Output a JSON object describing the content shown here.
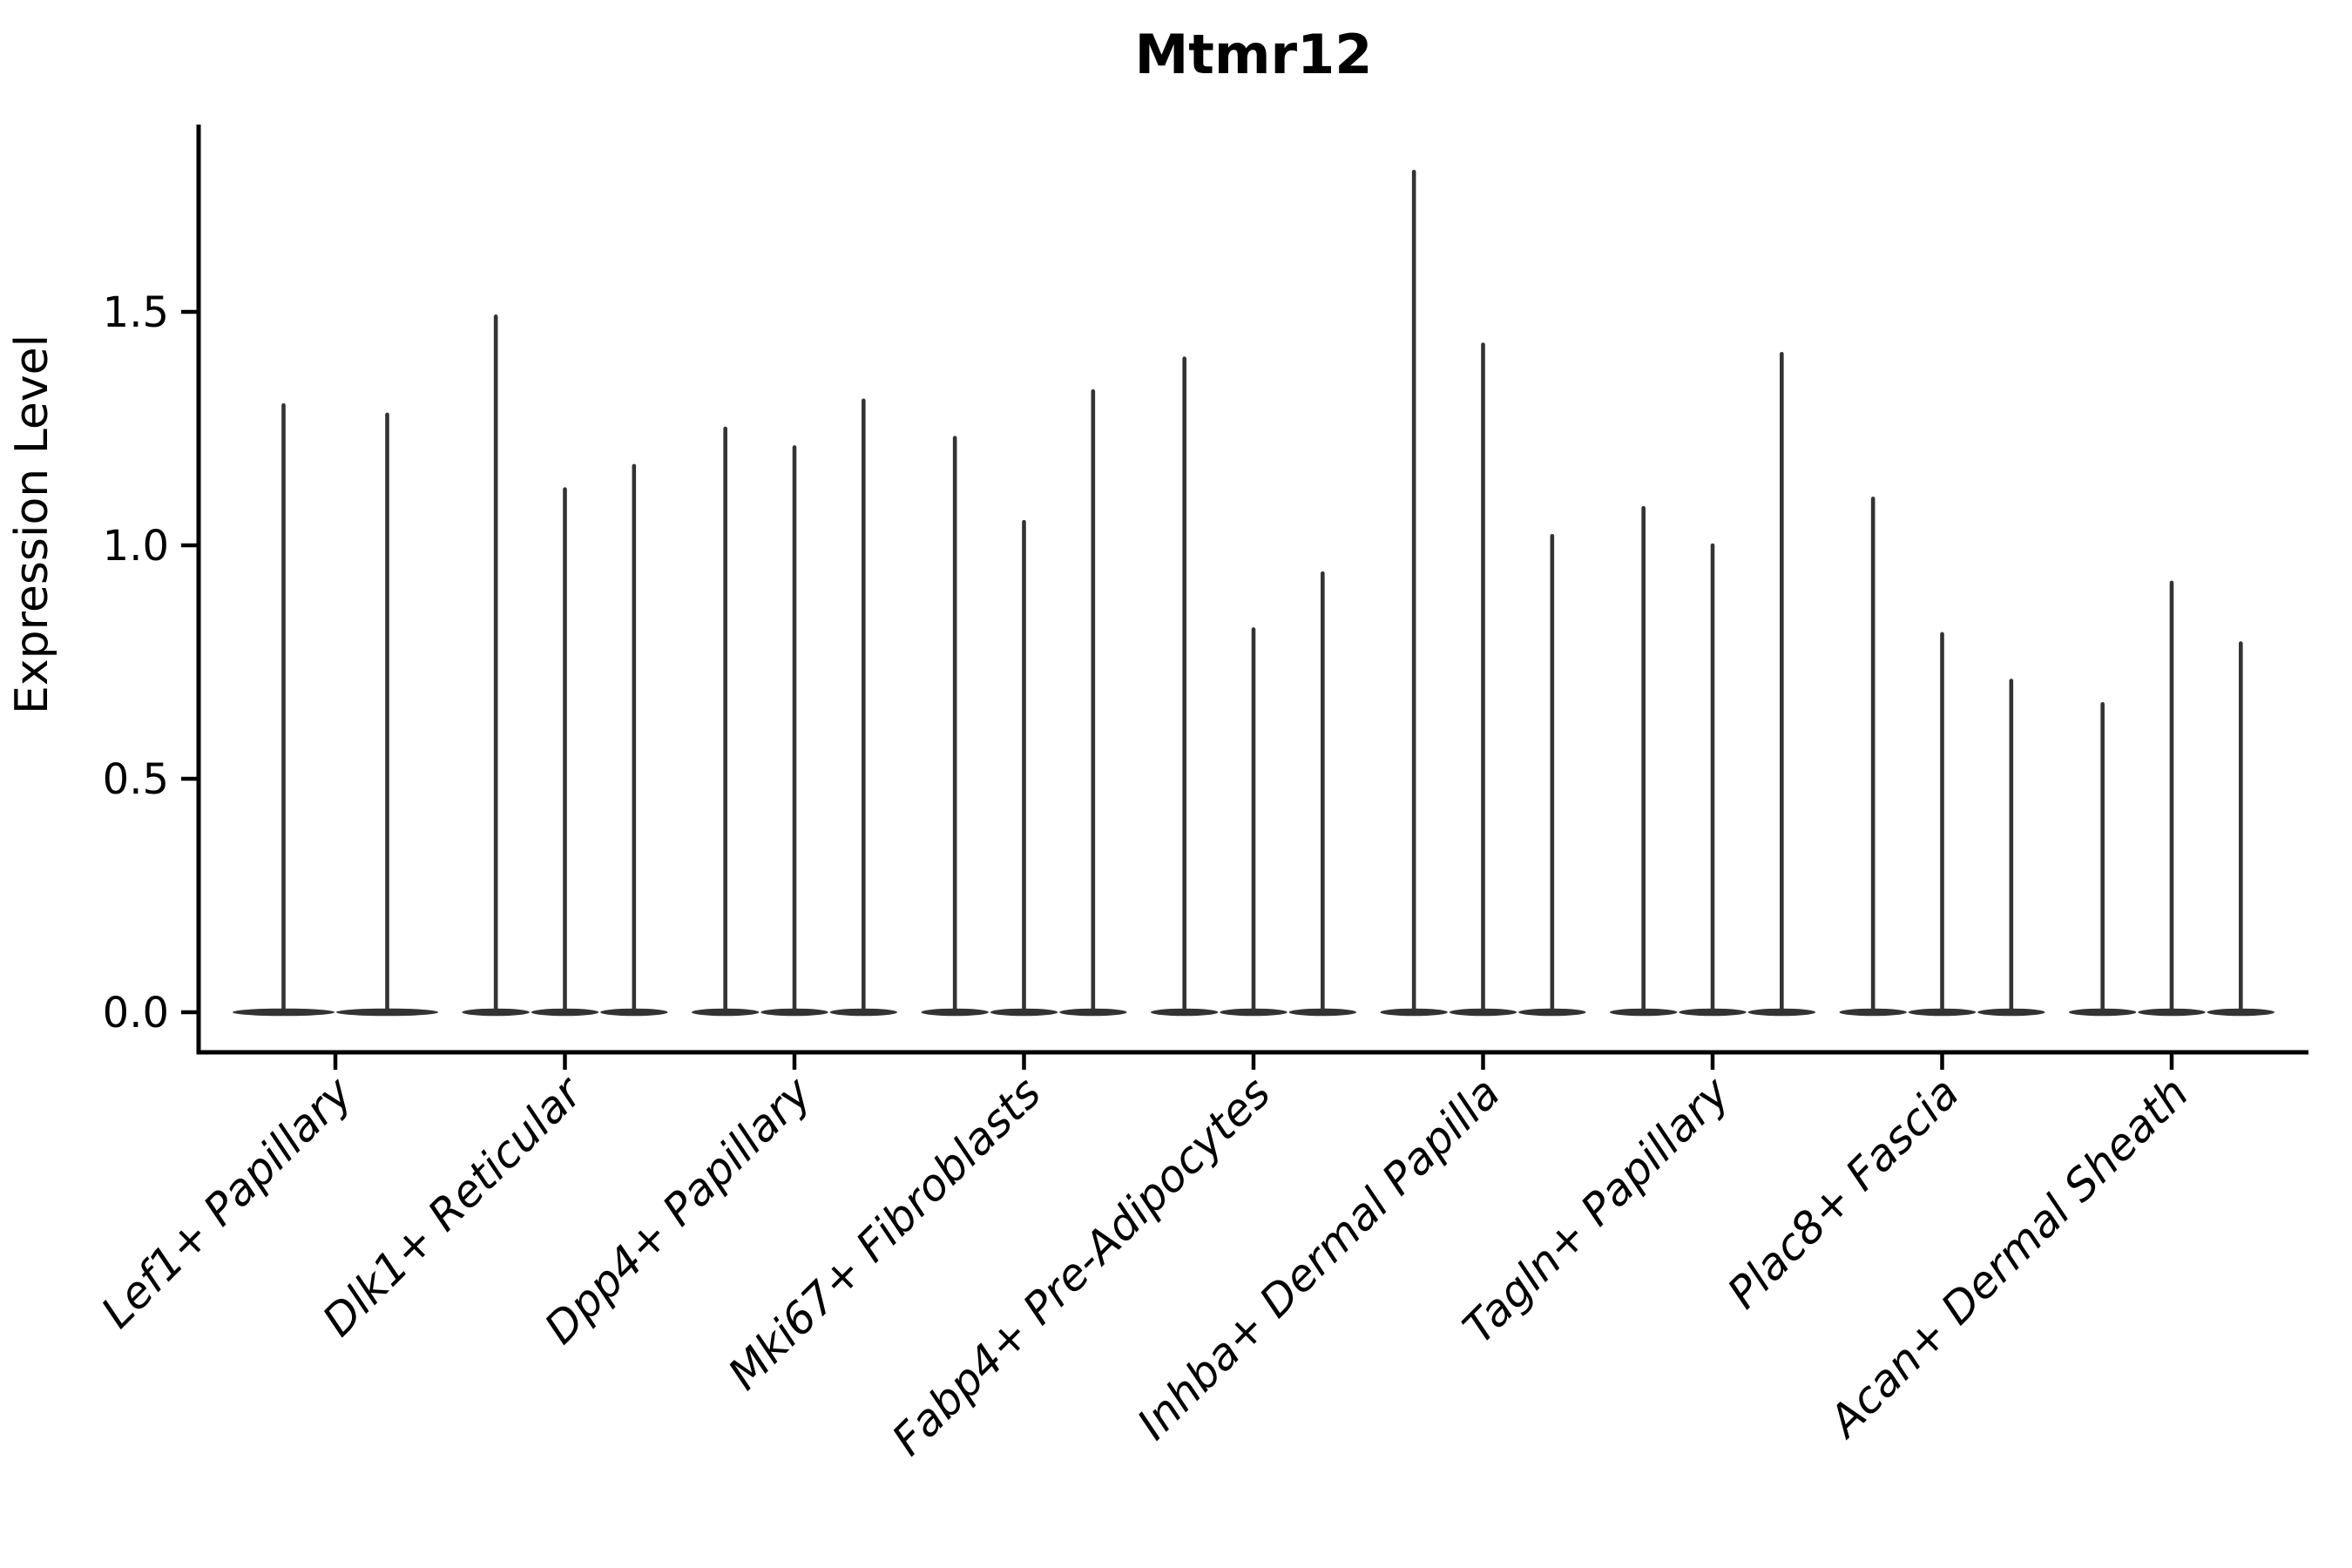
{
  "chart_data": {
    "type": "violin",
    "title": "Mtmr12",
    "xlabel": "",
    "ylabel": "Expression Level",
    "yticks": [
      0.0,
      0.5,
      1.0,
      1.5
    ],
    "ylim": [
      -0.05,
      1.9
    ],
    "grid": false,
    "legend": "none",
    "style_note": "thin black violins: wide flat body at 0 with narrow vertical tail up to max",
    "axis_color": "#000000",
    "violin_color": "#333333",
    "categories": [
      "Lef1+ Papillary",
      "Dlk1+ Reticular",
      "Dpp4+ Papillary",
      "Mki67+ Fibroblasts",
      "Fabp4+ Pre-Adipocytes",
      "Inhba+ Dermal Papilla",
      "Tagln+ Papillary",
      "Plac8+ Fascia",
      "Acan+ Dermal Sheath"
    ],
    "groups": [
      {
        "label": "Lef1+ Papillary",
        "violin_maxima": [
          1.3,
          1.28
        ]
      },
      {
        "label": "Dlk1+ Reticular",
        "violin_maxima": [
          1.49,
          1.12,
          1.17
        ]
      },
      {
        "label": "Dpp4+ Papillary",
        "violin_maxima": [
          1.25,
          1.21,
          1.31
        ]
      },
      {
        "label": "Mki67+ Fibroblasts",
        "violin_maxima": [
          1.23,
          1.05,
          1.33
        ]
      },
      {
        "label": "Fabp4+ Pre-Adipocytes",
        "violin_maxima": [
          1.4,
          0.82,
          0.94
        ]
      },
      {
        "label": "Inhba+ Dermal Papilla",
        "violin_maxima": [
          1.8,
          1.43,
          1.02
        ]
      },
      {
        "label": "Tagln+ Papillary",
        "violin_maxima": [
          1.08,
          1.0,
          1.41
        ]
      },
      {
        "label": "Plac8+ Fascia",
        "violin_maxima": [
          1.1,
          0.81,
          0.71
        ]
      },
      {
        "label": "Acan+ Dermal Sheath",
        "violin_maxima": [
          0.66,
          0.92,
          0.79
        ]
      }
    ]
  }
}
